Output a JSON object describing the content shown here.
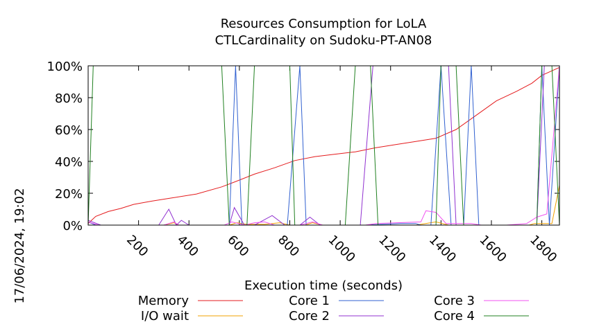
{
  "chart_data": {
    "type": "line",
    "title": "Resources Consumption for LoLA",
    "subtitle": "CTLCardinality on Sudoku-PT-AN08",
    "xlabel": "Execution time (seconds)",
    "ylabel": "",
    "side_label": "17/06/2024, 19:02",
    "xlim": [
      0,
      1870
    ],
    "ylim": [
      0,
      100
    ],
    "x_ticks": [
      200,
      400,
      600,
      800,
      1000,
      1200,
      1400,
      1600,
      1800
    ],
    "y_ticks": [
      {
        "value": 0,
        "label": "0%"
      },
      {
        "value": 20,
        "label": "20%"
      },
      {
        "value": 40,
        "label": "40%"
      },
      {
        "value": 60,
        "label": "60%"
      },
      {
        "value": 80,
        "label": "80%"
      },
      {
        "value": 100,
        "label": "100%"
      }
    ],
    "grid": false,
    "legend_position": "bottom",
    "series": [
      {
        "name": "Memory",
        "color": "#e41a1c",
        "points": [
          [
            0,
            1
          ],
          [
            30,
            5.5
          ],
          [
            80,
            8.5
          ],
          [
            130,
            10.5
          ],
          [
            180,
            13
          ],
          [
            250,
            15
          ],
          [
            330,
            17
          ],
          [
            430,
            19.5
          ],
          [
            530,
            24
          ],
          [
            580,
            27
          ],
          [
            660,
            32
          ],
          [
            740,
            36
          ],
          [
            820,
            40.5
          ],
          [
            900,
            43
          ],
          [
            980,
            44.5
          ],
          [
            1060,
            46
          ],
          [
            1140,
            48.5
          ],
          [
            1220,
            50.5
          ],
          [
            1300,
            52.5
          ],
          [
            1380,
            54.5
          ],
          [
            1460,
            60
          ],
          [
            1540,
            69
          ],
          [
            1620,
            78
          ],
          [
            1700,
            84
          ],
          [
            1760,
            89
          ],
          [
            1800,
            94
          ],
          [
            1870,
            99
          ]
        ]
      },
      {
        "name": "I/O wait",
        "color": "#f0a000",
        "points": [
          [
            0,
            0
          ],
          [
            300,
            0
          ],
          [
            340,
            1.5
          ],
          [
            360,
            0
          ],
          [
            560,
            0
          ],
          [
            590,
            1.5
          ],
          [
            630,
            0.5
          ],
          [
            700,
            0.5
          ],
          [
            760,
            1.5
          ],
          [
            800,
            0
          ],
          [
            860,
            0
          ],
          [
            890,
            1.5
          ],
          [
            930,
            0
          ],
          [
            1300,
            0
          ],
          [
            1380,
            2
          ],
          [
            1430,
            0
          ],
          [
            1750,
            0
          ],
          [
            1770,
            1
          ],
          [
            1840,
            1
          ],
          [
            1870,
            25
          ]
        ]
      },
      {
        "name": "Core 1",
        "color": "#3060d0",
        "points": [
          [
            0,
            2
          ],
          [
            30,
            0
          ],
          [
            560,
            0
          ],
          [
            585,
            100
          ],
          [
            610,
            0
          ],
          [
            760,
            0
          ],
          [
            790,
            0
          ],
          [
            840,
            100
          ],
          [
            865,
            0
          ],
          [
            1100,
            0
          ],
          [
            1240,
            1
          ],
          [
            1300,
            1
          ],
          [
            1320,
            0
          ],
          [
            1360,
            0
          ],
          [
            1400,
            100
          ],
          [
            1440,
            0
          ],
          [
            1490,
            0
          ],
          [
            1520,
            100
          ],
          [
            1550,
            0
          ],
          [
            1600,
            0
          ],
          [
            1780,
            0
          ],
          [
            1800,
            100
          ],
          [
            1830,
            0
          ],
          [
            1870,
            100
          ]
        ]
      },
      {
        "name": "Core 2",
        "color": "#9030d0",
        "points": [
          [
            0,
            3
          ],
          [
            50,
            0
          ],
          [
            280,
            0
          ],
          [
            320,
            10
          ],
          [
            350,
            0
          ],
          [
            370,
            3
          ],
          [
            400,
            0
          ],
          [
            560,
            0
          ],
          [
            580,
            11
          ],
          [
            620,
            0
          ],
          [
            660,
            0
          ],
          [
            730,
            6
          ],
          [
            780,
            0
          ],
          [
            840,
            0
          ],
          [
            880,
            5
          ],
          [
            920,
            0
          ],
          [
            1080,
            0
          ],
          [
            1130,
            100
          ],
          [
            1430,
            100
          ],
          [
            1460,
            0
          ],
          [
            1780,
            0
          ],
          [
            1810,
            100
          ],
          [
            1870,
            100
          ]
        ]
      },
      {
        "name": "Core 3",
        "color": "#f050f0",
        "points": [
          [
            0,
            2
          ],
          [
            40,
            0
          ],
          [
            300,
            0
          ],
          [
            340,
            2
          ],
          [
            360,
            0
          ],
          [
            540,
            0
          ],
          [
            570,
            2
          ],
          [
            620,
            0
          ],
          [
            660,
            1.5
          ],
          [
            700,
            2
          ],
          [
            740,
            0
          ],
          [
            840,
            0
          ],
          [
            890,
            2
          ],
          [
            930,
            0
          ],
          [
            1100,
            0
          ],
          [
            1140,
            1
          ],
          [
            1320,
            2
          ],
          [
            1340,
            9
          ],
          [
            1380,
            8
          ],
          [
            1420,
            1
          ],
          [
            1520,
            1
          ],
          [
            1560,
            0
          ],
          [
            1660,
            0
          ],
          [
            1740,
            1
          ],
          [
            1780,
            5
          ],
          [
            1820,
            7
          ],
          [
            1870,
            100
          ]
        ]
      },
      {
        "name": "Core 4",
        "color": "#208020",
        "points": [
          [
            0,
            0
          ],
          [
            20,
            100
          ],
          [
            530,
            100
          ],
          [
            560,
            0
          ],
          [
            630,
            0
          ],
          [
            660,
            100
          ],
          [
            800,
            100
          ],
          [
            820,
            0
          ],
          [
            900,
            0
          ],
          [
            1020,
            0
          ],
          [
            1060,
            100
          ],
          [
            1120,
            100
          ],
          [
            1150,
            0
          ],
          [
            1380,
            0
          ],
          [
            1400,
            100
          ],
          [
            1460,
            100
          ],
          [
            1490,
            0
          ],
          [
            1760,
            0
          ],
          [
            1780,
            0
          ],
          [
            1800,
            100
          ],
          [
            1840,
            100
          ],
          [
            1870,
            0
          ]
        ]
      }
    ]
  }
}
